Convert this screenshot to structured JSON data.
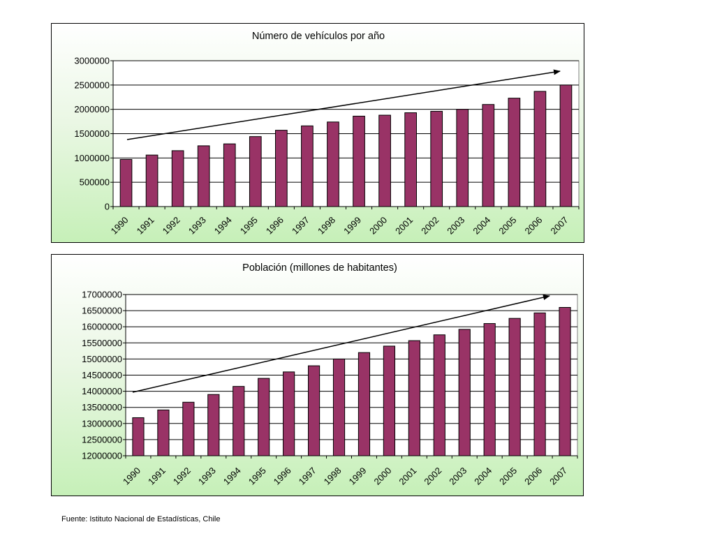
{
  "chart_data": [
    {
      "type": "bar",
      "title": "Número de vehículos por año",
      "xlabel": "",
      "ylabel": "",
      "categories": [
        "1990",
        "1991",
        "1992",
        "1993",
        "1994",
        "1995",
        "1996",
        "1997",
        "1998",
        "1999",
        "2000",
        "2001",
        "2002",
        "2003",
        "2004",
        "2005",
        "2006",
        "2007"
      ],
      "values": [
        970000,
        1060000,
        1150000,
        1250000,
        1290000,
        1440000,
        1570000,
        1660000,
        1740000,
        1860000,
        1880000,
        1930000,
        1960000,
        2000000,
        2100000,
        2230000,
        2370000,
        2500000
      ],
      "ylim": [
        0,
        3000000
      ],
      "yticks": [
        "0",
        "500000",
        "1000000",
        "1500000",
        "2000000",
        "2500000",
        "3000000"
      ],
      "grid": true,
      "legend": "none",
      "trend_arrow": true,
      "bar_color": "#993366",
      "plot_background": "#ffffff"
    },
    {
      "type": "bar",
      "title": "Población (millones de habitantes)",
      "xlabel": "",
      "ylabel": "",
      "categories": [
        "1990",
        "1991",
        "1992",
        "1993",
        "1994",
        "1995",
        "1996",
        "1997",
        "1998",
        "1999",
        "2000",
        "2001",
        "2002",
        "2003",
        "2004",
        "2005",
        "2006",
        "2007"
      ],
      "values": [
        13180000,
        13420000,
        13660000,
        13900000,
        14150000,
        14400000,
        14600000,
        14790000,
        15000000,
        15200000,
        15400000,
        15570000,
        15750000,
        15920000,
        16100000,
        16260000,
        16430000,
        16600000
      ],
      "ylim": [
        12000000,
        17000000
      ],
      "yticks": [
        "12000000",
        "12500000",
        "13000000",
        "13500000",
        "14000000",
        "14500000",
        "15000000",
        "15500000",
        "16000000",
        "16500000",
        "17000000"
      ],
      "grid": true,
      "legend": "none",
      "trend_arrow": true,
      "bar_color": "#993366",
      "plot_background": "#ffffff"
    }
  ],
  "source_note": "Fuente: Istituto Nacional de Estadísticas, Chile"
}
